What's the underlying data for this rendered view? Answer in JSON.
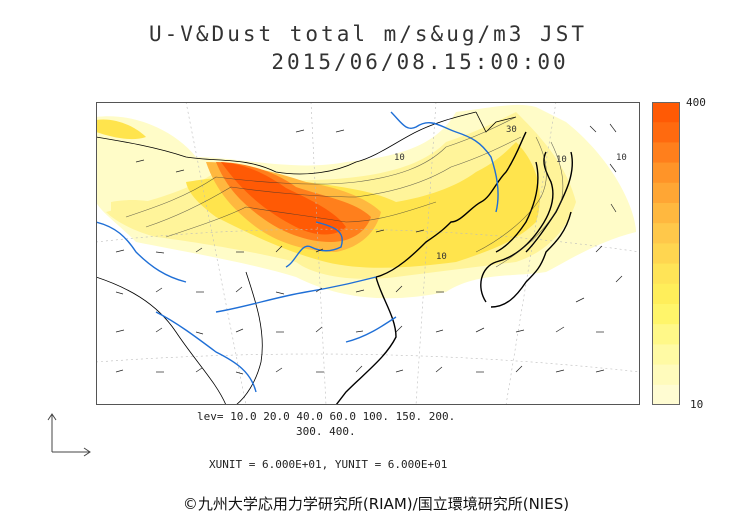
{
  "header": {
    "title_line1": "U-V&Dust total m/s&ug/m3 JST",
    "title_line2": "2015/06/08.15:00:00"
  },
  "map": {
    "contour_labels": [
      "10",
      "10",
      "30",
      "10",
      "10"
    ]
  },
  "colorbar": {
    "max_label": "400",
    "min_label": "10",
    "colors": [
      "#ff5a05",
      "#ff6a0f",
      "#ff7f1c",
      "#ff9428",
      "#ffa634",
      "#ffb83f",
      "#ffc84a",
      "#ffd650",
      "#ffe457",
      "#ffee5a",
      "#fff56a",
      "#fff888",
      "#fffaa4",
      "#fffbbc",
      "#fffcd2"
    ]
  },
  "legend": {
    "levels_line1": "lev= 10.0 20.0 40.0 60.0 100. 150. 200.",
    "levels_line2": "300. 400.",
    "unit_line": "XUNIT = 6.000E+01, YUNIT = 6.000E+01"
  },
  "credit": "©九州大学応用力学研究所(RIAM)/国立環境研究所(NIES)"
}
